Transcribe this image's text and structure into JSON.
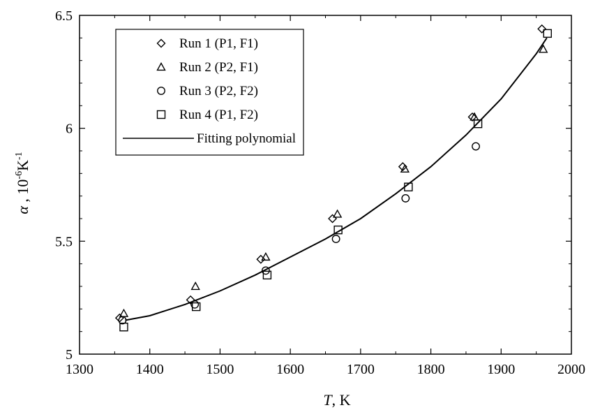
{
  "chart_data": {
    "type": "scatter",
    "title": "",
    "xlabel": {
      "symbol": "T",
      "unit": ", K"
    },
    "ylabel": {
      "symbol": "α",
      "unit": " , 10",
      "unit_exp": "-6",
      "unit_tail": "K",
      "unit_tail_exp": "-1"
    },
    "xlim": [
      1300,
      2000
    ],
    "ylim": [
      5,
      6.5
    ],
    "x_ticks": [
      1300,
      1400,
      1500,
      1600,
      1700,
      1800,
      1900,
      2000
    ],
    "x_tick_labels": [
      "1300",
      "1400",
      "1500",
      "1600",
      "1700",
      "1800",
      "1900",
      "2000"
    ],
    "y_ticks": [
      5,
      5.5,
      6,
      6.5
    ],
    "y_tick_labels": [
      "5",
      "5.5",
      "6",
      "6.5"
    ],
    "grid": false,
    "legend_position": "top-left",
    "series": [
      {
        "name": "Run 1 (P1, F1)",
        "marker": "diamond",
        "x": [
          1357,
          1458,
          1558,
          1660,
          1760,
          1859,
          1958
        ],
        "y": [
          5.16,
          5.24,
          5.42,
          5.6,
          5.83,
          6.05,
          6.44
        ]
      },
      {
        "name": "Run 2 (P2, F1)",
        "marker": "triangle",
        "x": [
          1363,
          1465,
          1565,
          1667,
          1763,
          1862,
          1960
        ],
        "y": [
          5.18,
          5.3,
          5.43,
          5.62,
          5.82,
          6.05,
          6.35
        ]
      },
      {
        "name": "Run 3 (P2, F2)",
        "marker": "circle",
        "x": [
          1361,
          1464,
          1565,
          1665,
          1764,
          1864
        ],
        "y": [
          5.15,
          5.22,
          5.37,
          5.51,
          5.69,
          5.92
        ]
      },
      {
        "name": "Run 4 (P1, F2)",
        "marker": "square",
        "x": [
          1363,
          1466,
          1567,
          1668,
          1768,
          1867,
          1966
        ],
        "y": [
          5.12,
          5.21,
          5.35,
          5.55,
          5.74,
          6.02,
          6.42
        ]
      },
      {
        "name": "Fitting polynomial",
        "marker": "line",
        "x": [
          1365,
          1400,
          1450,
          1500,
          1550,
          1600,
          1650,
          1700,
          1750,
          1800,
          1850,
          1900,
          1950,
          1965
        ],
        "y": [
          5.15,
          5.17,
          5.22,
          5.28,
          5.35,
          5.43,
          5.51,
          5.6,
          5.71,
          5.83,
          5.97,
          6.13,
          6.33,
          6.4
        ]
      }
    ]
  }
}
